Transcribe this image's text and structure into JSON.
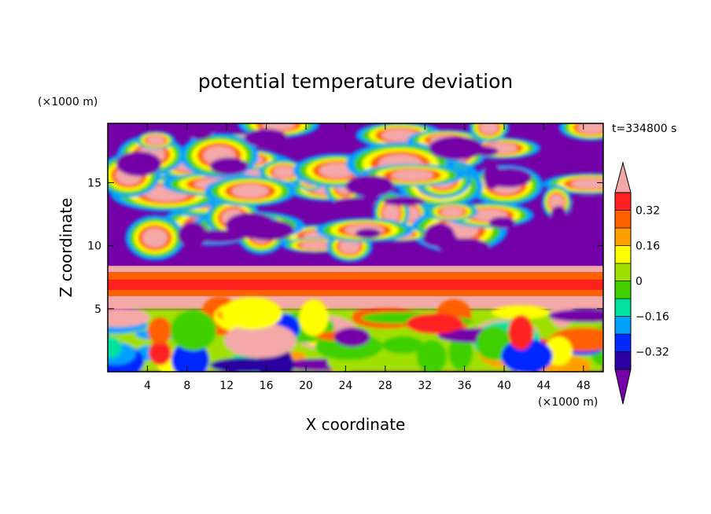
{
  "chart_data": {
    "type": "heatmap",
    "title": "potential temperature deviation",
    "xlabel": "X coordinate",
    "ylabel": "Z coordinate",
    "x_unit": "(×1000 m)",
    "y_unit": "(×1000 m)",
    "time_label": "t=334800 s",
    "xlim": [
      0,
      50
    ],
    "ylim": [
      0,
      19.7
    ],
    "x_ticks": [
      4,
      8,
      12,
      16,
      20,
      24,
      28,
      32,
      36,
      40,
      44,
      48
    ],
    "y_ticks": [
      5,
      10,
      15
    ],
    "colorbar": {
      "levels": [
        -0.4,
        -0.32,
        -0.24,
        -0.16,
        -0.08,
        0,
        0.08,
        0.16,
        0.24,
        0.32,
        0.4
      ],
      "tick_values": [
        0.32,
        0.16,
        0,
        -0.16,
        -0.32
      ],
      "tick_labels": [
        "0.32",
        "0.16",
        "0",
        "−0.16",
        "−0.32"
      ],
      "colors": [
        "#7400a8",
        "#2a00a0",
        "#0028ff",
        "#00a0ff",
        "#00e0a0",
        "#40d000",
        "#a0e000",
        "#ffff00",
        "#ffa000",
        "#ff6000",
        "#ff2020",
        "#f4a8a8"
      ],
      "extend": "both"
    },
    "colors": {
      "low": "#7400a8",
      "high": "#f4a8a8",
      "frame": "#000000"
    }
  }
}
